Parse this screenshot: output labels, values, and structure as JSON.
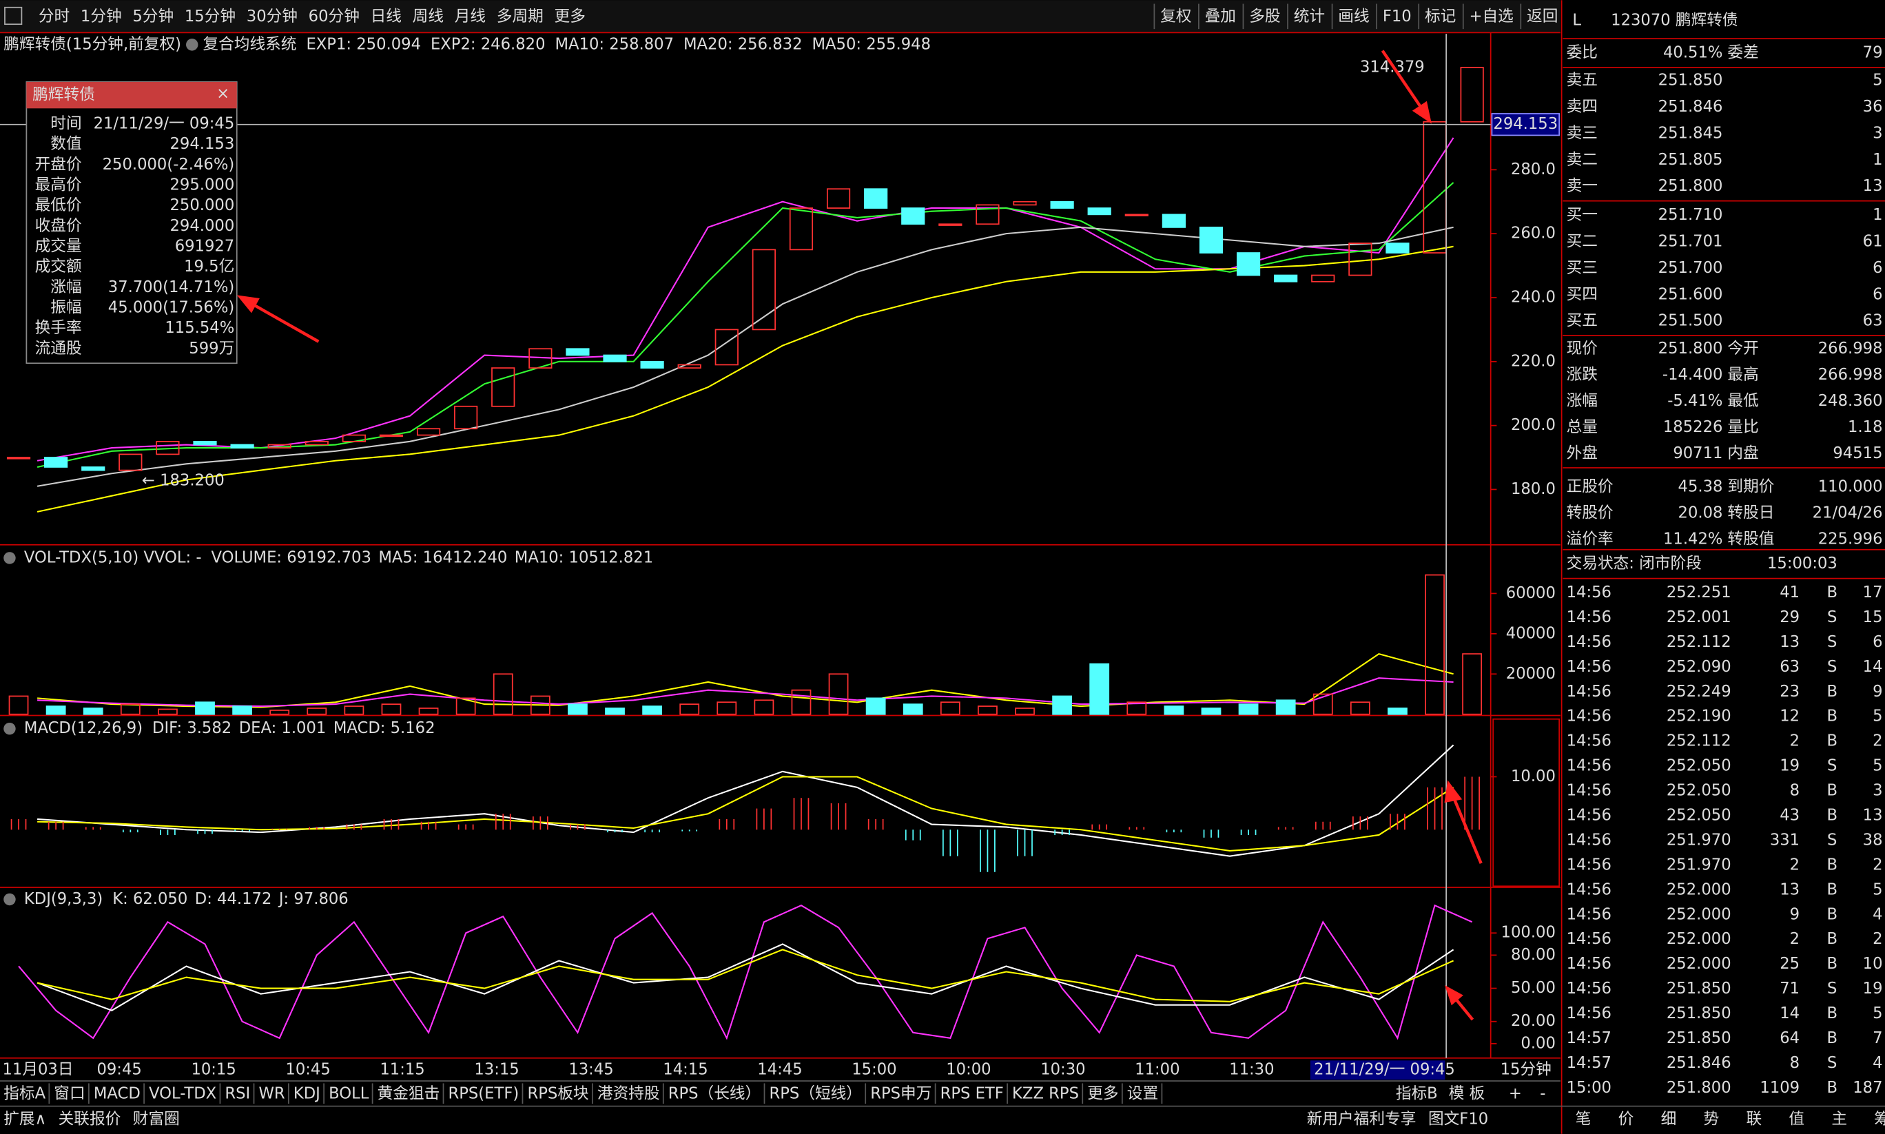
{
  "toolbar": {
    "periods": [
      "分时",
      "1分钟",
      "5分钟",
      "15分钟",
      "30分钟",
      "60分钟",
      "日线",
      "周线",
      "月线",
      "多周期",
      "更多"
    ],
    "active": 3,
    "buttons": [
      "复权",
      "叠加",
      "多股",
      "统计",
      "画线",
      "F10",
      "标记",
      "+自选",
      "返回"
    ]
  },
  "info_line": {
    "security": "鹏辉转债(15分钟,前复权)",
    "system": "复合均线系统",
    "indicators": [
      {
        "label": "EXP1: 250.094",
        "color": "#ffffff"
      },
      {
        "label": "EXP2: 246.820",
        "color": "#ffff00"
      },
      {
        "label": "MA10: 258.807",
        "color": "#ff33ff"
      },
      {
        "label": "MA20: 256.832",
        "color": "#33ff33"
      },
      {
        "label": "MA50: 255.948",
        "color": "#ffffff"
      }
    ]
  },
  "tooltip": {
    "title": "鹏辉转债",
    "rows": [
      {
        "label": "时间",
        "value": "21/11/29/一 09:45",
        "color": "#ffffff"
      },
      {
        "label": "数值",
        "value": "294.153",
        "color": "#ffffff"
      },
      {
        "label": "开盘价",
        "value": "250.000(-2.46%)",
        "color": "#33ff33"
      },
      {
        "label": "最高价",
        "value": "295.000",
        "color": "#ff3333"
      },
      {
        "label": "最低价",
        "value": "250.000",
        "color": "#33ff33"
      },
      {
        "label": "收盘价",
        "value": "294.000",
        "color": "#ff3333"
      },
      {
        "label": "成交量",
        "value": "691927",
        "color": "#ffff00"
      },
      {
        "label": "成交额",
        "value": "19.5亿",
        "color": "#ffffff"
      },
      {
        "label": "涨幅",
        "value": "37.700(14.71%)",
        "color": "#ff3333"
      },
      {
        "label": "振幅",
        "value": "45.000(17.56%)",
        "color": "#ffffff"
      },
      {
        "label": "换手率",
        "value": "115.54%",
        "color": "#ffffff"
      },
      {
        "label": "流通股",
        "value": "599万",
        "color": "#ffffff"
      }
    ]
  },
  "price_chart": {
    "ylim": [
      162.7,
      322.5
    ],
    "yticks": [
      {
        "value": 180,
        "label": "180.0"
      },
      {
        "value": 200,
        "label": "200.0"
      },
      {
        "value": 220,
        "label": "220.0"
      },
      {
        "value": 240,
        "label": "240.0"
      },
      {
        "value": 260,
        "label": "260.0"
      },
      {
        "value": 280,
        "label": "280.0"
      }
    ],
    "close": [
      190,
      187,
      186,
      191,
      195,
      194,
      193,
      194,
      195,
      197,
      197,
      199,
      206,
      218,
      224,
      222,
      220,
      218,
      219,
      230,
      255,
      268,
      274,
      268,
      263,
      263,
      269,
      270,
      268,
      266,
      266,
      262,
      254,
      247,
      245,
      247,
      257,
      254,
      295,
      312
    ],
    "lines": [
      {
        "color": "#ff33ff",
        "values": [
          189,
          193,
          194,
          193,
          196,
          203,
          222,
          221,
          222,
          262,
          270,
          264,
          268,
          268,
          262,
          249,
          249,
          256,
          254,
          290
        ]
      },
      {
        "color": "#33ff33",
        "values": [
          187,
          192,
          193,
          193,
          194,
          198,
          213,
          220,
          220,
          245,
          268,
          265,
          267,
          268,
          264,
          252,
          248,
          253,
          255,
          276
        ]
      },
      {
        "color": "#cccccc",
        "values": [
          181,
          185,
          188,
          190,
          192,
          195,
          200,
          205,
          212,
          222,
          238,
          248,
          255,
          260,
          262,
          260,
          258,
          256,
          257,
          262
        ]
      },
      {
        "color": "#ffff00",
        "values": [
          173,
          178,
          183,
          186,
          189,
          191,
          194,
          197,
          203,
          212,
          225,
          234,
          240,
          245,
          248,
          248,
          249,
          250,
          252,
          256
        ]
      }
    ],
    "high_label": "314.379",
    "low_label": "183.200",
    "cursor": 294.153
  },
  "volume_chart": {
    "header": "VOL-TDX(5,10)  VVOL: -",
    "indicators": [
      {
        "label": "VOLUME: 69192.703",
        "color": "#ffff00"
      },
      {
        "label": "MA5: 16412.240",
        "color": "#ffff00"
      },
      {
        "label": "MA10: 10512.821",
        "color": "#ff33ff"
      }
    ],
    "ylim": [
      0,
      82400
    ],
    "yticks": [
      20000,
      40000,
      60000
    ],
    "values": [
      9000,
      4000,
      3000,
      5000,
      2500,
      6000,
      4000,
      2000,
      3000,
      4000,
      5000,
      3000,
      8000,
      20000,
      9000,
      5000,
      3000,
      4000,
      5000,
      6000,
      7000,
      12000,
      20000,
      8000,
      5000,
      6000,
      4000,
      3000,
      9000,
      25000,
      6000,
      4000,
      3000,
      5000,
      7000,
      10000,
      6000,
      3000,
      69193,
      30000
    ],
    "lines": [
      {
        "color": "#ffff00",
        "values": [
          8000,
          5000,
          4000,
          3500,
          6000,
          14000,
          5000,
          4500,
          9000,
          16000,
          9000,
          6000,
          12000,
          7000,
          4000,
          6000,
          7000,
          5000,
          30000,
          20000
        ]
      },
      {
        "color": "#ff33ff",
        "values": [
          7000,
          5500,
          4500,
          4000,
          5000,
          10000,
          7000,
          5000,
          7000,
          12000,
          10000,
          7000,
          9000,
          8000,
          5000,
          5500,
          6000,
          5500,
          18000,
          16000
        ]
      }
    ]
  },
  "macd_chart": {
    "header": "MACD(12,26,9)",
    "indicators": [
      {
        "label": "DIF: 3.582",
        "color": "#ffffff"
      },
      {
        "label": "DEA: 1.001",
        "color": "#ffff00"
      },
      {
        "label": "MACD: 5.162",
        "color": "#ff33ff"
      }
    ],
    "ylim": [
      -10.9,
      20.9
    ],
    "yticks": [
      {
        "value": 10,
        "label": "10.00"
      }
    ],
    "hist": [
      2,
      1.5,
      0.5,
      -0.5,
      -1,
      -0.8,
      -0.3,
      0.2,
      0.5,
      1,
      2,
      1.5,
      1,
      3,
      2.5,
      1,
      -0.5,
      -0.5,
      -0.3,
      2,
      4,
      6,
      5,
      2,
      -2,
      -5,
      -8,
      -5,
      -1,
      1,
      0.5,
      -0.5,
      -1.5,
      -1,
      0.5,
      1.5,
      2.5,
      3,
      8,
      10
    ],
    "lines": [
      {
        "color": "#ffffff",
        "values": [
          2,
          1,
          0,
          -0.5,
          0.5,
          2,
          3,
          0.8,
          -0.5,
          6,
          11,
          8,
          1,
          0.5,
          -1,
          -3,
          -5,
          -3,
          3,
          16
        ]
      },
      {
        "color": "#ffff00",
        "values": [
          1.5,
          1.2,
          0.5,
          0,
          0.2,
          1,
          2,
          1.2,
          0.3,
          3,
          10,
          10,
          4,
          1,
          0,
          -2,
          -4,
          -3,
          -1,
          8
        ]
      }
    ]
  },
  "kdj_chart": {
    "header": "KDJ(9,3,3)",
    "indicators": [
      {
        "label": "K: 62.050",
        "color": "#ffffff"
      },
      {
        "label": "D: 44.172",
        "color": "#ffff00"
      },
      {
        "label": "J: 97.806",
        "color": "#ff33ff"
      }
    ],
    "ylim": [
      -10.9,
      138
    ],
    "yticks": [
      {
        "value": 0,
        "label": "0.00"
      },
      {
        "value": 20,
        "label": "20.00"
      },
      {
        "value": 50,
        "label": "50.00"
      },
      {
        "value": 80,
        "label": "80.00"
      },
      {
        "value": 100,
        "label": "100.00"
      }
    ],
    "lines": [
      {
        "color": "#ff33ff",
        "values": [
          70,
          30,
          5,
          60,
          110,
          90,
          20,
          5,
          80,
          110,
          60,
          10,
          100,
          115,
          60,
          10,
          95,
          118,
          70,
          5,
          110,
          125,
          105,
          60,
          10,
          5,
          95,
          105,
          50,
          10,
          80,
          70,
          10,
          5,
          30,
          110,
          60,
          5,
          125,
          110
        ]
      },
      {
        "color": "#ffffff",
        "values": [
          55,
          30,
          70,
          45,
          55,
          65,
          45,
          75,
          55,
          60,
          90,
          55,
          45,
          70,
          50,
          35,
          35,
          60,
          40,
          85
        ]
      },
      {
        "color": "#ffff00",
        "values": [
          55,
          40,
          60,
          50,
          50,
          60,
          50,
          70,
          58,
          58,
          85,
          62,
          50,
          65,
          55,
          40,
          38,
          55,
          45,
          75
        ]
      }
    ]
  },
  "time_axis": {
    "labels": [
      "11月03日",
      "09:45",
      "10:15",
      "10:45",
      "11:15",
      "13:15",
      "13:45",
      "14:15",
      "14:45",
      "15:00",
      "10:00",
      "10:30",
      "11:00",
      "11:30"
    ],
    "cursor": "21/11/29/一 09:45",
    "period": "15分钟"
  },
  "indicator_tabs": {
    "tabs": [
      "指标A",
      "窗口",
      "MACD",
      "VOL-TDX",
      "RSI",
      "WR",
      "KDJ",
      "BOLL",
      "黄金狙击",
      "RPS(ETF)",
      "RPS板块",
      "港资持股",
      "RPS（长线）",
      "RPS（短线）",
      "RPS申万",
      "RPS ETF",
      "KZZ RPS",
      "更多",
      "设置"
    ],
    "right": [
      "指标B",
      "模 板",
      "+",
      "-"
    ]
  },
  "bottom_bar": {
    "left": [
      "扩展∧",
      "关联报价",
      "财富圈"
    ],
    "right": [
      "新用户福利专享",
      "图文F10"
    ]
  },
  "quote": {
    "flag": "L",
    "title": "123070 鹏辉转债",
    "ratio": {
      "label": "委比",
      "value": "40.51%",
      "label2": "委差",
      "value2": "79"
    },
    "asks": [
      [
        "卖五",
        "251.850",
        "5"
      ],
      [
        "卖四",
        "251.846",
        "36"
      ],
      [
        "卖三",
        "251.845",
        "3"
      ],
      [
        "卖二",
        "251.805",
        "1"
      ],
      [
        "卖一",
        "251.800",
        "13"
      ]
    ],
    "bids": [
      [
        "买一",
        "251.710",
        "1"
      ],
      [
        "买二",
        "251.701",
        "61"
      ],
      [
        "买三",
        "251.700",
        "6"
      ],
      [
        "买四",
        "251.600",
        "6"
      ],
      [
        "买五",
        "251.500",
        "63"
      ]
    ],
    "stats": [
      [
        {
          "t": "现价",
          "c": "#ffffff"
        },
        {
          "t": "251.800",
          "c": "#33ff33"
        },
        {
          "t": "今开",
          "c": "#ffffff"
        },
        {
          "t": "266.998",
          "c": "#ff3333"
        }
      ],
      [
        {
          "t": "涨跌",
          "c": "#ffffff"
        },
        {
          "t": "-14.400",
          "c": "#33ff33"
        },
        {
          "t": "最高",
          "c": "#ffffff"
        },
        {
          "t": "266.998",
          "c": "#ff3333"
        }
      ],
      [
        {
          "t": "涨幅",
          "c": "#ffffff"
        },
        {
          "t": "-5.41%",
          "c": "#33ff33"
        },
        {
          "t": "最低",
          "c": "#ffffff"
        },
        {
          "t": "248.360",
          "c": "#33ff33"
        }
      ],
      [
        {
          "t": "总量",
          "c": "#ffffff"
        },
        {
          "t": "185226",
          "c": "#ffff00"
        },
        {
          "t": "量比",
          "c": "#ffffff"
        },
        {
          "t": "1.18",
          "c": "#ff3333"
        }
      ],
      [
        {
          "t": "外盘",
          "c": "#ffffff"
        },
        {
          "t": "90711",
          "c": "#ff3333"
        },
        {
          "t": "内盘",
          "c": "#ffffff"
        },
        {
          "t": "94515",
          "c": "#33ff33"
        }
      ],
      [
        {
          "t": "正股价",
          "c": "#ffffff"
        },
        {
          "t": "45.38",
          "c": "#33ff33"
        },
        {
          "t": "到期价",
          "c": "#ffffff"
        },
        {
          "t": "110.000",
          "c": "#ffffff"
        }
      ],
      [
        {
          "t": "转股价",
          "c": "#ffffff"
        },
        {
          "t": "20.08",
          "c": "#ffffff"
        },
        {
          "t": "转股日",
          "c": "#ffffff"
        },
        {
          "t": "21/04/26",
          "c": "#ffffff"
        }
      ],
      [
        {
          "t": "溢价率",
          "c": "#ffffff"
        },
        {
          "t": "11.42%",
          "c": "#ff3333"
        },
        {
          "t": "转股值",
          "c": "#ffffff"
        },
        {
          "t": "225.996",
          "c": "#ffffff"
        }
      ]
    ],
    "status": {
      "label": "交易状态: 闭市阶段",
      "time": "15:00:03"
    },
    "ticks": [
      [
        "14:56",
        "252.251",
        "41",
        "B",
        "17"
      ],
      [
        "14:56",
        "252.001",
        "29",
        "S",
        "15"
      ],
      [
        "14:56",
        "252.112",
        "13",
        "S",
        "6"
      ],
      [
        "14:56",
        "252.090",
        "63",
        "S",
        "14"
      ],
      [
        "14:56",
        "252.249",
        "23",
        "B",
        "9"
      ],
      [
        "14:56",
        "252.190",
        "12",
        "B",
        "5"
      ],
      [
        "14:56",
        "252.112",
        "2",
        "B",
        "2"
      ],
      [
        "14:56",
        "252.050",
        "19",
        "S",
        "5"
      ],
      [
        "14:56",
        "252.050",
        "8",
        "B",
        "3"
      ],
      [
        "14:56",
        "252.050",
        "43",
        "B",
        "13"
      ],
      [
        "14:56",
        "251.970",
        "331",
        "S",
        "38"
      ],
      [
        "14:56",
        "251.970",
        "2",
        "B",
        "2"
      ],
      [
        "14:56",
        "252.000",
        "13",
        "B",
        "5"
      ],
      [
        "14:56",
        "252.000",
        "9",
        "B",
        "4"
      ],
      [
        "14:56",
        "252.000",
        "2",
        "B",
        "2"
      ],
      [
        "14:56",
        "252.000",
        "25",
        "B",
        "10"
      ],
      [
        "14:56",
        "251.850",
        "71",
        "S",
        "19"
      ],
      [
        "14:56",
        "251.850",
        "14",
        "B",
        "5"
      ],
      [
        "14:57",
        "251.850",
        "64",
        "B",
        "7"
      ],
      [
        "14:57",
        "251.846",
        "8",
        "S",
        "4"
      ],
      [
        "15:00",
        "251.800",
        "1109",
        "B",
        "187"
      ]
    ],
    "tabs": [
      "笔",
      "价",
      "细",
      "势",
      "联",
      "值",
      "主",
      "筹"
    ]
  }
}
